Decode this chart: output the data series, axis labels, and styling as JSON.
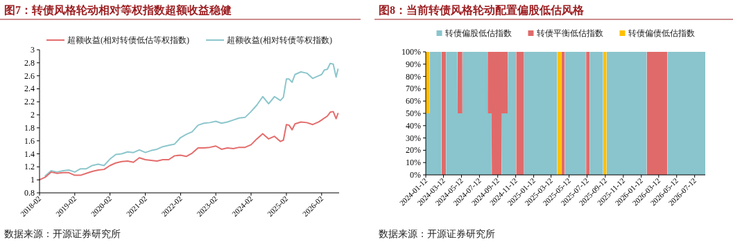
{
  "chart_data": [
    {
      "type": "line",
      "title": "图7：转债风格轮动相对等权指数超额收益稳健",
      "annotations": [
        "数据来源：开源证券研究所"
      ],
      "legend": "top",
      "x": [
        "2018-02",
        "2018-04",
        "2018-06",
        "2018-08",
        "2018-10",
        "2018-12",
        "2019-02",
        "2019-04",
        "2019-06",
        "2019-08",
        "2019-10",
        "2019-12",
        "2020-02",
        "2020-04",
        "2020-06",
        "2020-08",
        "2020-10",
        "2020-12",
        "2021-02",
        "2021-04",
        "2021-06",
        "2021-08",
        "2021-10",
        "2021-12",
        "2022-02",
        "2022-04",
        "2022-06",
        "2022-08",
        "2022-10",
        "2022-12",
        "2023-02",
        "2023-04",
        "2023-06",
        "2023-08",
        "2023-10",
        "2023-12",
        "2024-02",
        "2024-04",
        "2024-06",
        "2024-08",
        "2024-10",
        "2024-12",
        "2025-01",
        "2025-02",
        "2025-03",
        "2025-04",
        "2025-05",
        "2025-07",
        "2025-09",
        "2025-11",
        "2026-01",
        "2026-02",
        "2026-03",
        "2026-04",
        "2026-05",
        "2026-06",
        "2026-07",
        "2026-07-20"
      ],
      "series": [
        {
          "name": "超额收益(相对转债低估等权指数)",
          "color": "#e46c6c",
          "values": [
            1.0,
            1.04,
            1.12,
            1.1,
            1.11,
            1.11,
            1.07,
            1.07,
            1.1,
            1.13,
            1.15,
            1.16,
            1.22,
            1.26,
            1.28,
            1.29,
            1.27,
            1.34,
            1.31,
            1.3,
            1.29,
            1.31,
            1.31,
            1.37,
            1.38,
            1.36,
            1.41,
            1.49,
            1.49,
            1.5,
            1.52,
            1.47,
            1.49,
            1.48,
            1.5,
            1.5,
            1.54,
            1.63,
            1.71,
            1.63,
            1.67,
            1.59,
            1.61,
            1.85,
            1.84,
            1.77,
            1.86,
            1.89,
            1.88,
            1.85,
            1.89,
            1.92,
            1.95,
            1.98,
            2.04,
            2.05,
            1.94,
            2.02
          ]
        },
        {
          "name": "超额收益(相对转债等权指数)",
          "color": "#8cc6cc",
          "values": [
            null,
            1.06,
            1.14,
            1.12,
            1.14,
            1.15,
            1.12,
            1.17,
            1.17,
            1.22,
            1.24,
            1.22,
            1.32,
            1.39,
            1.4,
            1.43,
            1.42,
            1.46,
            1.42,
            1.45,
            1.47,
            1.51,
            1.53,
            1.55,
            1.65,
            1.7,
            1.74,
            1.84,
            1.87,
            1.88,
            1.9,
            1.87,
            1.89,
            1.92,
            1.95,
            1.96,
            2.05,
            2.15,
            2.28,
            2.17,
            2.28,
            2.22,
            2.27,
            2.55,
            2.55,
            2.5,
            2.62,
            2.66,
            2.64,
            2.56,
            2.6,
            2.62,
            2.69,
            2.7,
            2.79,
            2.78,
            2.58,
            2.7
          ]
        }
      ],
      "xlim": [
        "2018-02",
        "2026-08"
      ],
      "xticks": [
        "2018-02",
        "2019-02",
        "2020-02",
        "2021-02",
        "2022-02",
        "2023-02",
        "2024-02",
        "2025-02",
        "2026-02"
      ],
      "ylim": [
        0.8,
        3
      ],
      "yticks": [
        0.8,
        1,
        1.2,
        1.4,
        1.6,
        1.8,
        2,
        2.2,
        2.4,
        2.6,
        2.8,
        3
      ]
    },
    {
      "type": "area",
      "stacked": true,
      "title": "图8：当前转债风格轮动配置偏股低估风格",
      "annotations": [
        "数据来源：开源证券研究所"
      ],
      "legend": "top",
      "x": [
        "2024-01-12",
        "2024-01-25",
        "2024-01-26",
        "2024-03-05",
        "2024-03-06",
        "2024-03-20",
        "2024-03-21",
        "2024-04-28",
        "2024-04-29",
        "2024-05-15",
        "2024-05-16",
        "2024-08-08",
        "2024-08-09",
        "2024-08-22",
        "2024-08-23",
        "2024-09-25",
        "2024-09-26",
        "2024-10-16",
        "2024-10-17",
        "2024-11-13",
        "2024-11-14",
        "2024-12-10",
        "2024-12-11",
        "2025-04-01",
        "2025-04-02",
        "2025-04-15",
        "2025-04-16",
        "2025-04-27",
        "2025-04-28",
        "2025-07-08",
        "2025-07-09",
        "2025-07-21",
        "2025-07-22",
        "2025-09-04",
        "2025-09-05",
        "2025-09-16",
        "2025-09-17",
        "2026-01-30",
        "2026-01-31",
        "2026-04-10",
        "2026-04-11",
        "2026-08-17"
      ],
      "series": [
        {
          "name": "转债偏股低估指数",
          "color": "#8ac4cc",
          "values": [
            50,
            50,
            100,
            100,
            null,
            null,
            100,
            100,
            50,
            50,
            100,
            100,
            50,
            50,
            null,
            null,
            50,
            50,
            100,
            100,
            null,
            null,
            100,
            100,
            null,
            null,
            null,
            null,
            100,
            100,
            null,
            null,
            100,
            100,
            null,
            null,
            100,
            100,
            null,
            null,
            100,
            100
          ]
        },
        {
          "name": "转债平衡低估指数",
          "color": "#e06a6a",
          "values": [
            null,
            null,
            null,
            null,
            100,
            100,
            null,
            null,
            50,
            50,
            null,
            null,
            50,
            50,
            100,
            100,
            50,
            50,
            null,
            null,
            100,
            100,
            null,
            null,
            null,
            null,
            100,
            100,
            null,
            null,
            100,
            100,
            null,
            null,
            null,
            null,
            null,
            null,
            100,
            100,
            null,
            null
          ]
        },
        {
          "name": "转债偏债低估指数",
          "color": "#ffc000",
          "values": [
            50,
            50,
            null,
            null,
            null,
            null,
            null,
            null,
            null,
            null,
            null,
            null,
            null,
            null,
            null,
            null,
            null,
            null,
            null,
            null,
            null,
            null,
            null,
            null,
            100,
            100,
            null,
            null,
            null,
            null,
            null,
            null,
            null,
            null,
            100,
            100,
            null,
            null,
            null,
            null,
            null,
            null
          ]
        }
      ],
      "xlim": [
        "2024-01-12",
        "2026-08-17"
      ],
      "xticks": [
        "2024-01-12",
        "2024-03-12",
        "2024-05-12",
        "2024-07-12",
        "2024-09-12",
        "2024-11-12",
        "2025-01-12",
        "2025-03-12",
        "2025-05-12",
        "2025-07-12",
        "2025-09-12",
        "2025-11-12",
        "2026-01-12",
        "2026-03-12",
        "2026-05-12",
        "2026-07-12"
      ],
      "ylim": [
        0,
        100
      ],
      "yticks": [
        {
          "value": 0,
          "label": "0%"
        },
        {
          "value": 10,
          "label": "10%"
        },
        {
          "value": 20,
          "label": "20%"
        },
        {
          "value": 30,
          "label": "30%"
        },
        {
          "value": 40,
          "label": "40%"
        },
        {
          "value": 50,
          "label": "50%"
        },
        {
          "value": 60,
          "label": "60%"
        },
        {
          "value": 70,
          "label": "70%"
        },
        {
          "value": 80,
          "label": "80%"
        },
        {
          "value": 90,
          "label": "90%"
        },
        {
          "value": 100,
          "label": "100%"
        }
      ]
    }
  ]
}
